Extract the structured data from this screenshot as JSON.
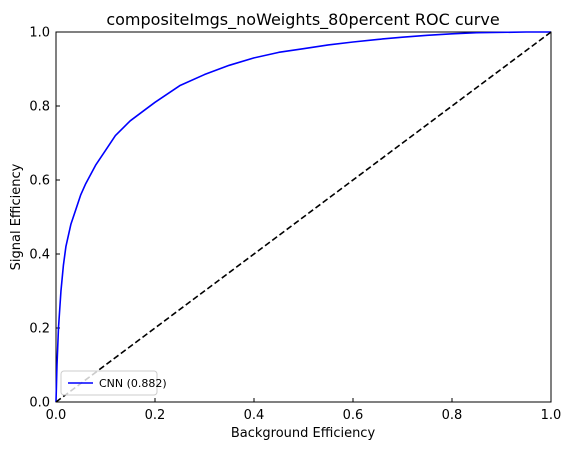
{
  "chart_data": {
    "type": "line",
    "title": "compositeImgs_noWeights_80percent ROC curve",
    "xlabel": "Background Efficiency",
    "ylabel": "Signal Efficiency",
    "xlim": [
      0.0,
      1.0
    ],
    "ylim": [
      0.0,
      1.0
    ],
    "xticks": [
      "0.0",
      "0.2",
      "0.4",
      "0.6",
      "0.8",
      "1.0"
    ],
    "yticks": [
      "0.0",
      "0.2",
      "0.4",
      "0.6",
      "0.8",
      "1.0"
    ],
    "grid": false,
    "legend_position": "lower-left",
    "series": [
      {
        "name": "CNN (0.882)",
        "color": "#0000ff",
        "style": "solid",
        "x": [
          0.0,
          0.002,
          0.005,
          0.01,
          0.015,
          0.02,
          0.03,
          0.04,
          0.05,
          0.06,
          0.08,
          0.1,
          0.12,
          0.15,
          0.18,
          0.2,
          0.25,
          0.3,
          0.35,
          0.4,
          0.45,
          0.5,
          0.55,
          0.6,
          0.65,
          0.7,
          0.75,
          0.8,
          0.85,
          0.9,
          0.95,
          1.0
        ],
        "y": [
          0.0,
          0.1,
          0.2,
          0.3,
          0.37,
          0.42,
          0.48,
          0.52,
          0.56,
          0.59,
          0.64,
          0.68,
          0.72,
          0.76,
          0.79,
          0.81,
          0.855,
          0.885,
          0.91,
          0.93,
          0.945,
          0.955,
          0.965,
          0.973,
          0.98,
          0.986,
          0.991,
          0.995,
          0.998,
          0.999,
          1.0,
          1.0
        ]
      },
      {
        "name": "",
        "color": "#000000",
        "style": "dashed",
        "x": [
          0.0,
          1.0
        ],
        "y": [
          0.0,
          1.0
        ]
      }
    ]
  }
}
